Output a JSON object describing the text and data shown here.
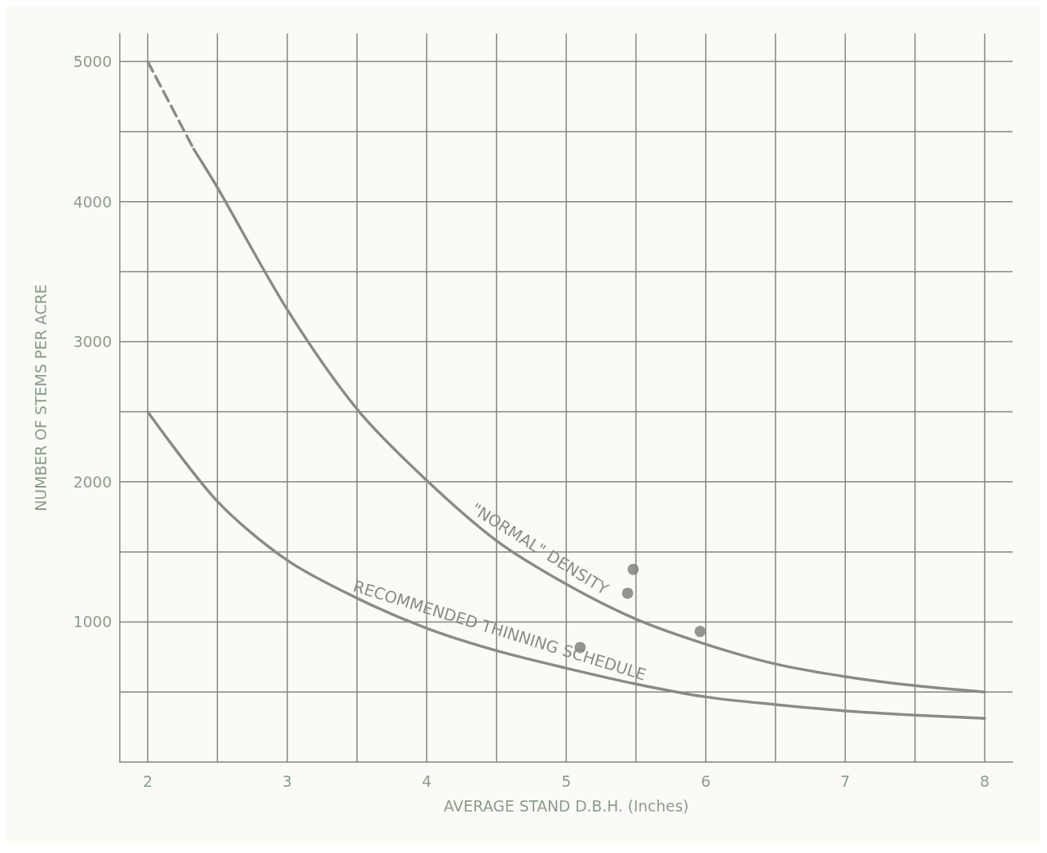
{
  "chart_data": {
    "type": "line",
    "xlabel": "AVERAGE STAND D.B.H. (Inches)",
    "ylabel": "NUMBER OF STEMS PER ACRE",
    "xlim": [
      1.8,
      8.2
    ],
    "ylim": [
      0,
      5200
    ],
    "xticks": [
      2,
      {
        "value": 2.5,
        "label": null
      },
      3,
      {
        "value": 3.5,
        "label": null
      },
      4,
      {
        "value": 4.5,
        "label": null
      },
      5,
      {
        "value": 5.5,
        "label": null
      },
      6,
      {
        "value": 6.5,
        "label": null
      },
      7,
      {
        "value": 7.5,
        "label": null
      },
      8
    ],
    "yticks": [
      {
        "value": 500,
        "label": null
      },
      1000,
      {
        "value": 1500,
        "label": null
      },
      2000,
      {
        "value": 2500,
        "label": null
      },
      3000,
      {
        "value": 3500,
        "label": null
      },
      4000,
      {
        "value": 4500,
        "label": null
      },
      5000
    ],
    "grid": true,
    "series": [
      {
        "color": "#8a8a8a",
        "line_style": "dashed",
        "marker": "none",
        "x": [
          2,
          2.33
        ],
        "values": [
          5000,
          4375
        ]
      },
      {
        "name": "\"NORMAL\" DENSITY",
        "color": "#8a8a8a",
        "line_style": "solid",
        "marker": "none",
        "x": [
          2.33,
          2.5,
          3,
          3.5,
          4,
          4.5,
          5,
          5.5,
          6,
          6.5,
          7,
          7.5,
          8
        ],
        "values": [
          4375,
          4100,
          3230,
          2520,
          2010,
          1580,
          1270,
          1020,
          841,
          700,
          610,
          545,
          500
        ]
      },
      {
        "name": "RECOMMENDED THINNING SCHEDULE",
        "color": "#8a8a8a",
        "line_style": "solid",
        "marker": "none",
        "x": [
          2,
          2.5,
          3,
          3.5,
          4,
          4.5,
          5,
          5.5,
          6,
          6.5,
          7,
          7.5,
          8
        ],
        "values": [
          2500,
          1860,
          1440,
          1170,
          955,
          795,
          670,
          557,
          465,
          410,
          365,
          335,
          312
        ]
      },
      {
        "type": "scatter",
        "color": "#7a7a7a",
        "marker": "circle",
        "x": [
          5.48,
          5.44,
          5.1,
          5.96
        ],
        "values": [
          1375,
          1205,
          818,
          932
        ]
      }
    ]
  }
}
